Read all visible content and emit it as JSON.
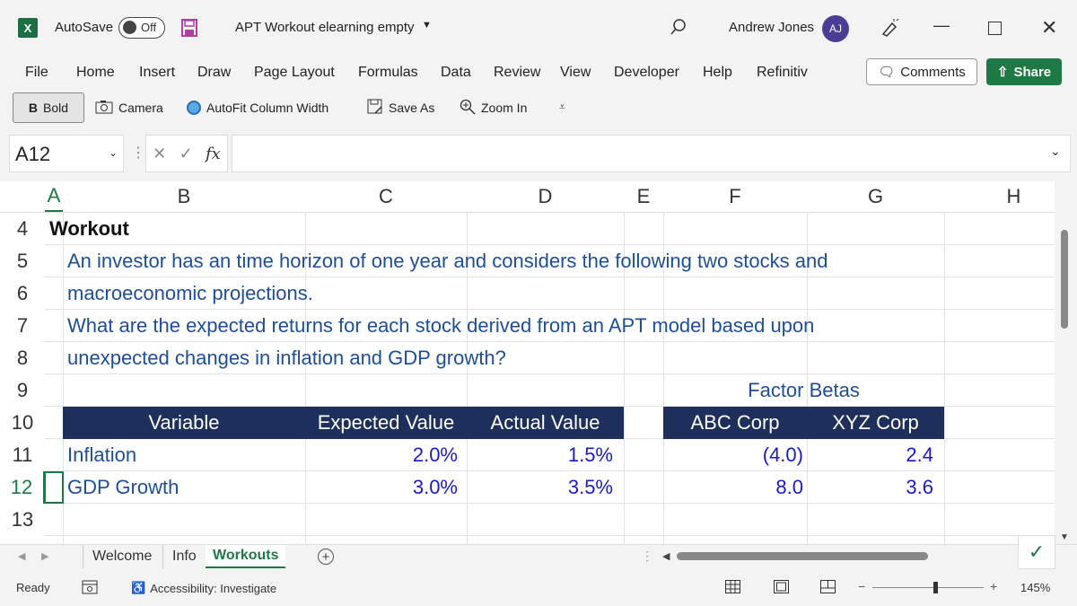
{
  "titlebar": {
    "app_logo": "X",
    "autosave_label": "AutoSave",
    "autosave_state": "Off",
    "file_title": "APT Workout elearning empty",
    "user_name": "Andrew Jones",
    "user_initials": "AJ"
  },
  "menu": {
    "items": [
      "File",
      "Home",
      "Insert",
      "Draw",
      "Page Layout",
      "Formulas",
      "Data",
      "Review",
      "View",
      "Developer",
      "Help",
      "Refinitiv"
    ],
    "comments_label": "Comments",
    "share_label": "Share"
  },
  "quick_toolbar": {
    "bold_label": "Bold",
    "camera_label": "Camera",
    "autofit_label": "AutoFit Column Width",
    "saveas_label": "Save As",
    "zoomin_label": "Zoom In"
  },
  "formula_bar": {
    "name_box": "A12",
    "fx": "fx",
    "formula": ""
  },
  "columns": [
    "A",
    "B",
    "C",
    "D",
    "E",
    "F",
    "G",
    "H"
  ],
  "rows": [
    "4",
    "5",
    "6",
    "7",
    "8",
    "9",
    "10",
    "11",
    "12",
    "13"
  ],
  "sheet": {
    "r4_title": "Workout",
    "r5_text": "An investor has an time horizon of one year and considers the following two stocks and",
    "r6_text": "macroeconomic projections.",
    "r7_text": "What are the expected returns for each stock derived from an APT model based upon",
    "r8_text": "unexpected changes in inflation and GDP growth?",
    "r9_factor_betas": "Factor Betas",
    "table_headers": [
      "Variable",
      "Expected Value",
      "Actual Value",
      "ABC Corp",
      "XYZ Corp"
    ],
    "table_rows": [
      {
        "variable": "Inflation",
        "expected": "2.0%",
        "actual": "1.5%",
        "abc": "(4.0)",
        "xyz": "2.4"
      },
      {
        "variable": "GDP Growth",
        "expected": "3.0%",
        "actual": "3.5%",
        "abc": "8.0",
        "xyz": "3.6"
      }
    ]
  },
  "tabs": [
    "Welcome",
    "Info",
    "Workouts"
  ],
  "active_tab": "Workouts",
  "status": {
    "ready": "Ready",
    "accessibility": "Accessibility: Investigate",
    "zoom": "145%"
  },
  "colors": {
    "excel_green": "#1e7a44",
    "header_navy": "#1f2f5b",
    "text_blue": "#1f4e99",
    "number_blue": "#1a1acc"
  }
}
